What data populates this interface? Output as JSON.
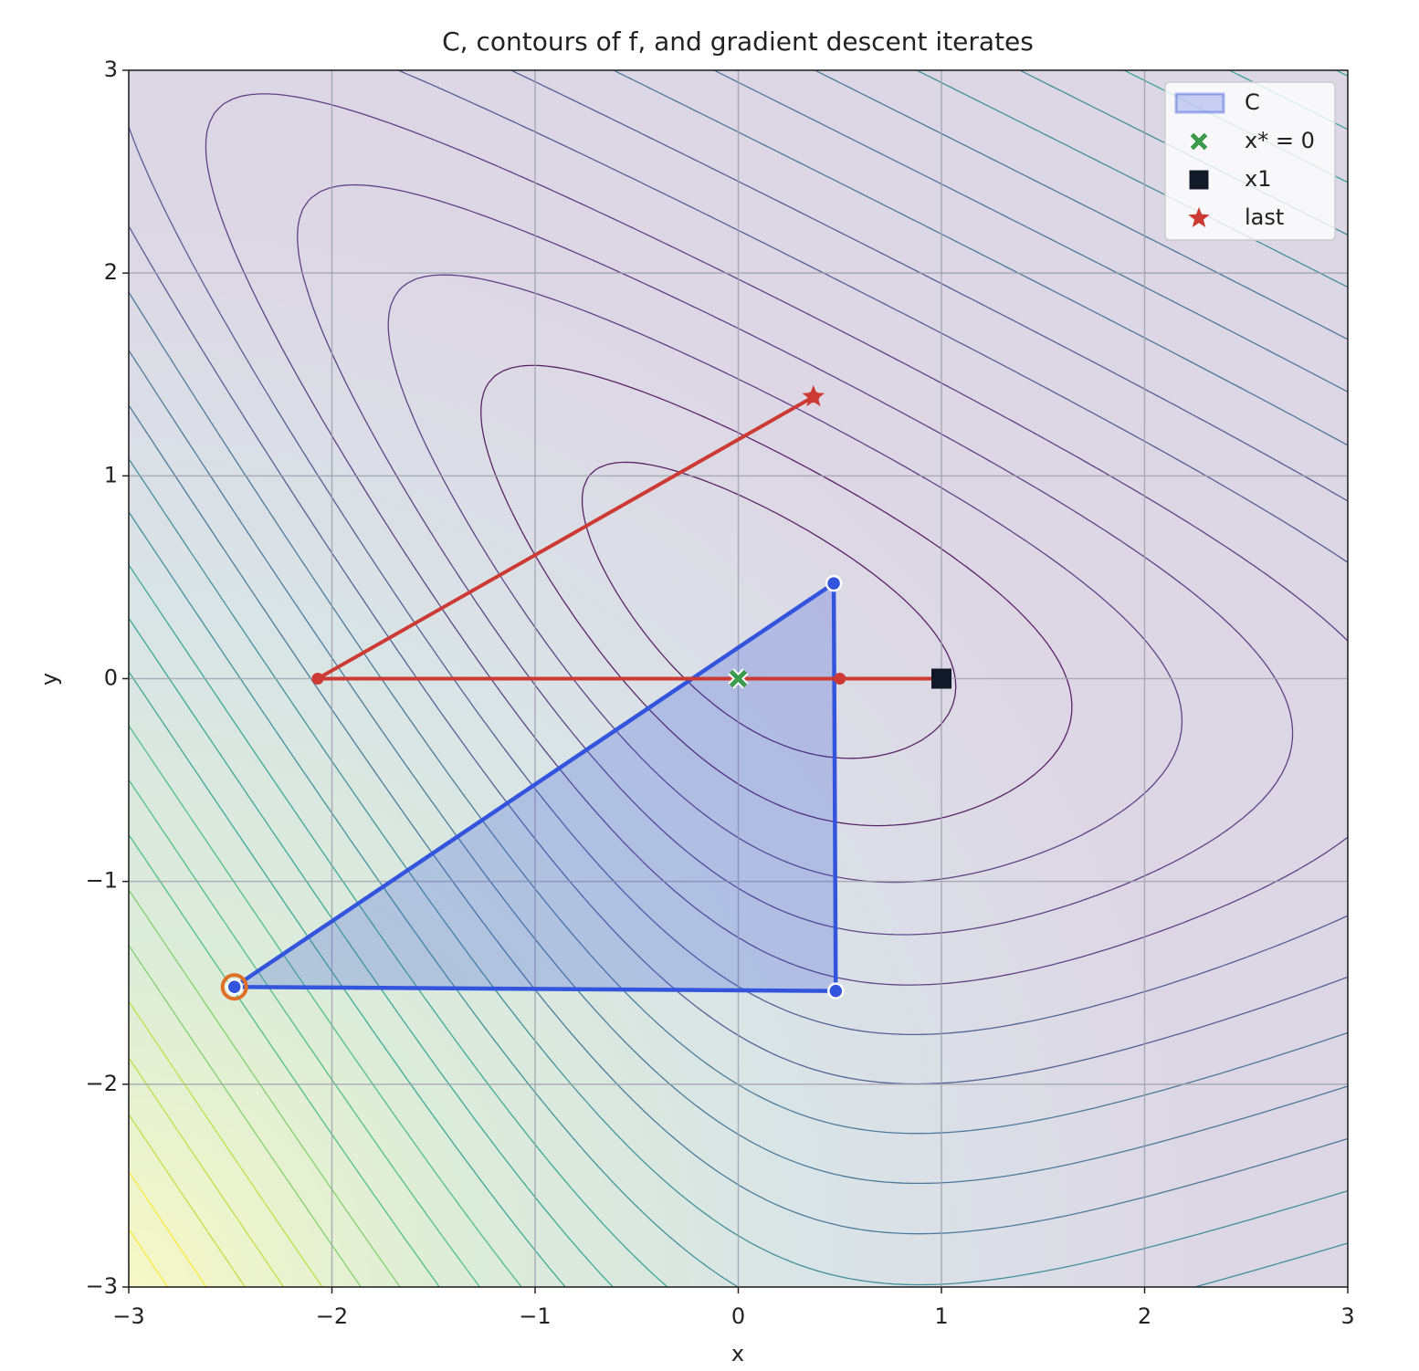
{
  "chart_data": {
    "type": "scatter",
    "title": "C, contours of f, and gradient descent iterates",
    "xlabel": "x",
    "ylabel": "y",
    "xlim": [
      -3,
      3
    ],
    "ylim": [
      -3,
      3
    ],
    "xticks": [
      {
        "value": -3,
        "label": "−3"
      },
      {
        "value": -2,
        "label": "−2"
      },
      {
        "value": -1,
        "label": "−1"
      },
      0,
      1,
      2,
      3
    ],
    "yticks": [
      {
        "value": -3,
        "label": "−3"
      },
      {
        "value": -2,
        "label": "−2"
      },
      {
        "value": -1,
        "label": "−1"
      },
      0,
      1,
      2,
      3
    ],
    "grid": true,
    "legend": "upper right",
    "region": {
      "name": "C",
      "color": "#3355dd",
      "x": [
        0.47,
        0.48,
        -2.48
      ],
      "y": [
        0.47,
        -1.54,
        -1.52
      ]
    },
    "path": {
      "color": "#cc3a33",
      "x": [
        1,
        0.5,
        -2.07,
        0.37
      ],
      "y": [
        0,
        0,
        0,
        1.39
      ]
    },
    "highlight": {
      "color": "#e07028",
      "x": [
        -2.48
      ],
      "y": [
        -1.52
      ]
    },
    "series": [
      {
        "name": "x* = 0",
        "color": "#3c9a4c",
        "marker": "x",
        "x": [
          0
        ],
        "y": [
          0
        ]
      },
      {
        "name": "x1",
        "color": "#111827",
        "marker": "square",
        "x": [
          1
        ],
        "y": [
          0
        ]
      },
      {
        "name": "last",
        "color": "#cc3a33",
        "marker": "star",
        "x": [
          0.37
        ],
        "y": [
          1.39
        ]
      }
    ]
  }
}
